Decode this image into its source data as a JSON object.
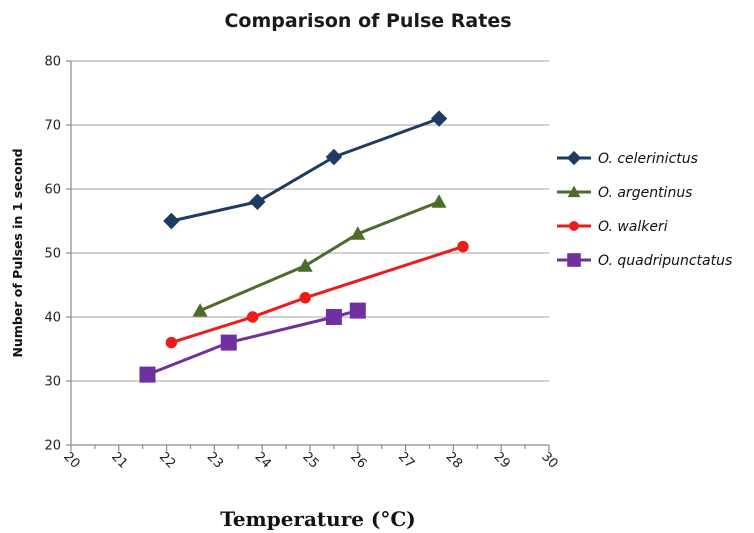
{
  "chart_data": {
    "type": "line",
    "title": "Comparison of Pulse Rates",
    "xlabel": "Temperature (°C)",
    "ylabel": "Number of  Pulses in 1 second",
    "xlim": [
      20,
      30
    ],
    "ylim": [
      20,
      80
    ],
    "x_ticks": [
      "20",
      "21",
      "22",
      "23",
      "24",
      "25",
      "26",
      "27",
      "28",
      "29",
      "30"
    ],
    "y_ticks": [
      "20",
      "30",
      "40",
      "50",
      "60",
      "70",
      "80"
    ],
    "grid": "horizontal",
    "legend_position": "right",
    "series": [
      {
        "name": "O. celerinictus",
        "color": "#1f3b63",
        "marker": "diamond",
        "points": [
          [
            22.1,
            55
          ],
          [
            23.9,
            58
          ],
          [
            25.5,
            65
          ],
          [
            27.7,
            71
          ]
        ]
      },
      {
        "name": "O. argentinus",
        "color": "#4e6b2a",
        "marker": "triangle",
        "points": [
          [
            22.7,
            41
          ],
          [
            24.9,
            48
          ],
          [
            26.0,
            53
          ],
          [
            27.7,
            58
          ]
        ]
      },
      {
        "name": "O. walkeri",
        "color": "#ee1b1b",
        "marker": "circle",
        "points": [
          [
            22.1,
            36
          ],
          [
            23.8,
            40
          ],
          [
            24.9,
            43
          ],
          [
            28.2,
            51
          ]
        ]
      },
      {
        "name": "O. quadripunctatus",
        "color": "#7030a0",
        "marker": "square",
        "points": [
          [
            21.6,
            31
          ],
          [
            23.3,
            36
          ],
          [
            25.5,
            40
          ],
          [
            26.0,
            41
          ]
        ]
      }
    ]
  }
}
